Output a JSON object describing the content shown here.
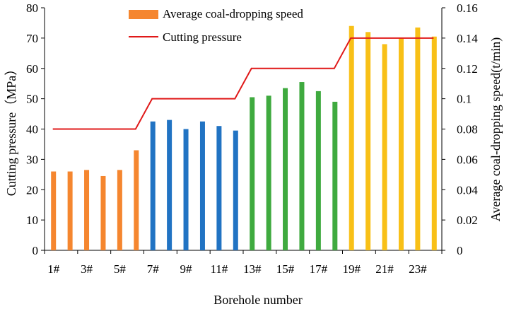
{
  "chart_data": {
    "type": "bar+line",
    "xlabel": "Borehole number",
    "ylabel_left": "Cutting pressure（MPa）",
    "ylabel_right": "Average coal-dropping speed(t/min)",
    "ylim_left": [
      0,
      80
    ],
    "ylim_right": [
      0,
      0.16
    ],
    "left_ticks": [
      "0",
      "10",
      "20",
      "30",
      "40",
      "50",
      "60",
      "70",
      "80"
    ],
    "right_ticks": [
      "0",
      "0.02",
      "0.04",
      "0.06",
      "0.08",
      "0.1",
      "0.12",
      "0.14",
      "0.16"
    ],
    "x_tick_labels": [
      "1#",
      "3#",
      "5#",
      "7#",
      "9#",
      "11#",
      "13#",
      "15#",
      "17#",
      "19#",
      "21#",
      "23#"
    ],
    "boreholes": [
      "1#",
      "2#",
      "3#",
      "4#",
      "5#",
      "6#",
      "7#",
      "8#",
      "9#",
      "10#",
      "11#",
      "12#",
      "13#",
      "14#",
      "15#",
      "16#",
      "17#",
      "18#",
      "19#",
      "20#",
      "21#",
      "22#",
      "23#",
      "24#"
    ],
    "series": [
      {
        "name": "Average coal-dropping speed",
        "type": "bar",
        "axis": "right",
        "values": [
          0.052,
          0.052,
          0.053,
          0.049,
          0.053,
          0.066,
          0.085,
          0.086,
          0.08,
          0.085,
          0.082,
          0.079,
          0.101,
          0.102,
          0.107,
          0.111,
          0.105,
          0.098,
          0.148,
          0.144,
          0.136,
          0.14,
          0.147,
          0.141
        ],
        "group_colors": [
          "#F5862F",
          "#F5862F",
          "#F5862F",
          "#F5862F",
          "#F5862F",
          "#F5862F",
          "#2173C3",
          "#2173C3",
          "#2173C3",
          "#2173C3",
          "#2173C3",
          "#2173C3",
          "#3FAA3F",
          "#3FAA3F",
          "#3FAA3F",
          "#3FAA3F",
          "#3FAA3F",
          "#3FAA3F",
          "#F8C017",
          "#F8C017",
          "#F8C017",
          "#F8C017",
          "#F8C017",
          "#F8C017"
        ],
        "legend_color": "#F5862F"
      },
      {
        "name": "Cutting pressure",
        "type": "line",
        "axis": "left",
        "color": "#E01919",
        "points": [
          [
            1,
            40
          ],
          [
            6,
            40
          ],
          [
            7,
            50
          ],
          [
            12,
            50
          ],
          [
            13,
            60
          ],
          [
            18,
            60
          ],
          [
            19,
            70
          ],
          [
            24,
            70
          ]
        ]
      }
    ],
    "legend_position": "top-center"
  }
}
